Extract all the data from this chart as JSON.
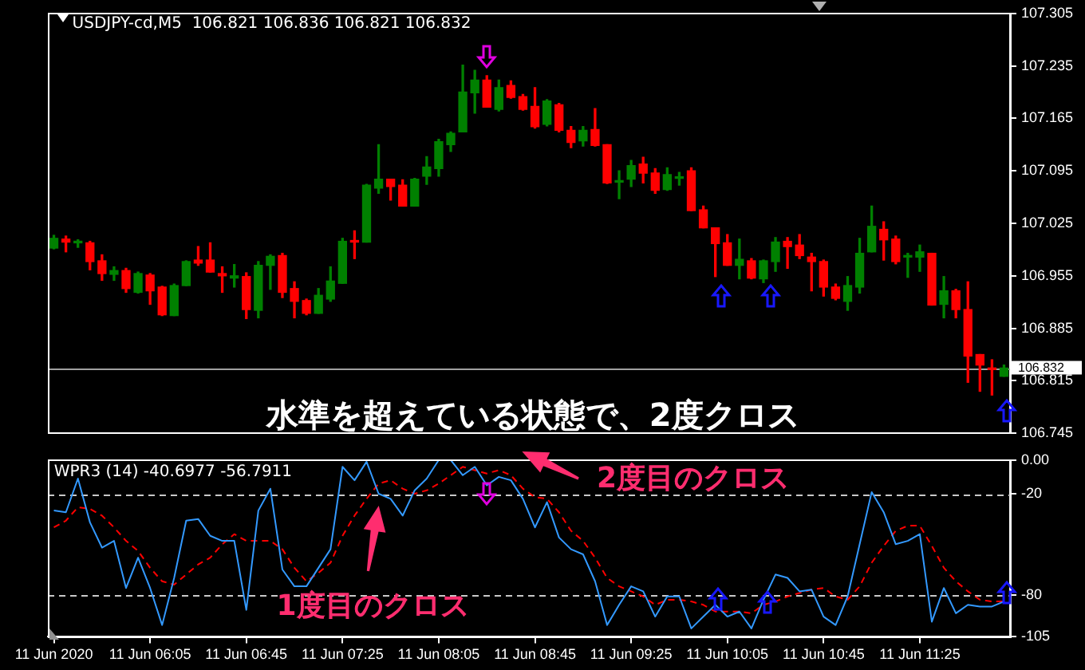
{
  "chart_data": [
    {
      "type": "candlestick",
      "title": "USDJPY-cd,M5  106.821 106.836 106.821 106.832",
      "ohlc": [
        [
          106.992,
          107.009,
          106.991,
          107.005
        ],
        [
          107.004,
          107.008,
          106.987,
          107.0
        ],
        [
          106.999,
          107.003,
          106.993,
          107.001
        ],
        [
          106.999,
          107.001,
          106.963,
          106.974
        ],
        [
          106.975,
          106.983,
          106.949,
          106.958
        ],
        [
          106.957,
          106.967,
          106.949,
          106.962
        ],
        [
          106.962,
          106.965,
          106.933,
          106.938
        ],
        [
          106.933,
          106.96,
          106.932,
          106.958
        ],
        [
          106.956,
          106.958,
          106.917,
          106.935
        ],
        [
          106.94,
          106.941,
          106.902,
          106.903
        ],
        [
          106.902,
          106.944,
          106.902,
          106.942
        ],
        [
          106.942,
          106.975,
          106.942,
          106.974
        ],
        [
          106.976,
          106.994,
          106.969,
          106.972
        ],
        [
          106.976,
          106.999,
          106.96,
          106.96
        ],
        [
          106.958,
          106.967,
          106.933,
          106.955
        ],
        [
          106.952,
          106.97,
          106.94,
          106.955
        ],
        [
          106.954,
          106.959,
          106.898,
          106.91
        ],
        [
          106.909,
          106.974,
          106.899,
          106.969
        ],
        [
          106.969,
          106.983,
          106.937,
          106.981
        ],
        [
          106.982,
          106.985,
          106.926,
          106.933
        ],
        [
          106.938,
          106.947,
          106.899,
          106.921
        ],
        [
          106.922,
          106.924,
          106.903,
          106.905
        ],
        [
          106.905,
          106.938,
          106.905,
          106.929
        ],
        [
          106.924,
          106.967,
          106.921,
          106.948
        ],
        [
          106.945,
          107.005,
          106.945,
          107.001
        ],
        [
          107.001,
          107.015,
          106.978,
          107.0
        ],
        [
          107.0,
          107.077,
          107.0,
          107.076
        ],
        [
          107.072,
          107.13,
          107.065,
          107.084
        ],
        [
          107.084,
          107.084,
          107.056,
          107.074
        ],
        [
          107.076,
          107.083,
          107.048,
          107.048
        ],
        [
          107.048,
          107.085,
          107.048,
          107.084
        ],
        [
          107.088,
          107.114,
          107.077,
          107.1
        ],
        [
          107.098,
          107.137,
          107.088,
          107.134
        ],
        [
          107.13,
          107.147,
          107.121,
          107.145
        ],
        [
          107.147,
          107.236,
          107.147,
          107.2
        ],
        [
          107.199,
          107.229,
          107.172,
          107.216
        ],
        [
          107.216,
          107.222,
          107.18,
          107.18
        ],
        [
          107.177,
          107.216,
          107.175,
          107.206
        ],
        [
          107.209,
          107.215,
          107.192,
          107.193
        ],
        [
          107.194,
          107.197,
          107.176,
          107.177
        ],
        [
          107.181,
          107.206,
          107.152,
          107.154
        ],
        [
          107.157,
          107.19,
          107.155,
          107.188
        ],
        [
          107.183,
          107.185,
          107.147,
          107.149
        ],
        [
          107.149,
          107.154,
          107.126,
          107.133
        ],
        [
          107.135,
          107.154,
          107.128,
          107.149
        ],
        [
          107.15,
          107.178,
          107.128,
          107.129
        ],
        [
          107.13,
          107.13,
          107.078,
          107.079
        ],
        [
          107.08,
          107.095,
          107.058,
          107.082
        ],
        [
          107.084,
          107.109,
          107.074,
          107.102
        ],
        [
          107.104,
          107.113,
          107.079,
          107.092
        ],
        [
          107.092,
          107.098,
          107.065,
          107.069
        ],
        [
          107.07,
          107.099,
          107.069,
          107.09
        ],
        [
          107.085,
          107.093,
          107.076,
          107.087
        ],
        [
          107.095,
          107.099,
          107.042,
          107.042
        ],
        [
          107.043,
          107.048,
          107.019,
          107.019
        ],
        [
          107.019,
          107.019,
          106.954,
          106.998
        ],
        [
          106.999,
          107.01,
          106.969,
          106.969
        ],
        [
          106.969,
          107.004,
          106.951,
          106.977
        ],
        [
          106.975,
          106.978,
          106.951,
          106.952
        ],
        [
          106.951,
          106.976,
          106.946,
          106.975
        ],
        [
          106.974,
          107.006,
          106.961,
          107.0
        ],
        [
          107.001,
          107.006,
          106.965,
          106.994
        ],
        [
          106.996,
          107.01,
          106.978,
          106.982
        ],
        [
          106.98,
          106.985,
          106.935,
          106.974
        ],
        [
          106.974,
          106.976,
          106.928,
          106.94
        ],
        [
          106.94,
          106.944,
          106.923,
          106.925
        ],
        [
          106.921,
          106.954,
          106.909,
          106.942
        ],
        [
          106.94,
          107.005,
          106.932,
          106.985
        ],
        [
          106.987,
          107.048,
          106.987,
          107.021
        ],
        [
          107.017,
          107.027,
          106.976,
          107.003
        ],
        [
          107.004,
          107.008,
          106.971,
          106.974
        ],
        [
          106.98,
          106.985,
          106.953,
          106.981
        ],
        [
          106.98,
          106.996,
          106.961,
          106.987
        ],
        [
          106.985,
          106.985,
          106.916,
          106.916
        ],
        [
          106.917,
          106.954,
          106.899,
          106.935
        ],
        [
          106.935,
          106.937,
          106.899,
          106.91
        ],
        [
          106.91,
          106.947,
          106.813,
          106.848
        ],
        [
          106.85,
          106.85,
          106.801,
          106.836
        ],
        [
          106.831,
          106.843,
          106.796,
          106.83
        ],
        [
          106.821,
          106.836,
          106.821,
          106.832
        ]
      ],
      "colors": [
        "#008000",
        "#ff0000",
        "#008000",
        "#ff0000",
        "#ff0000",
        "#008000",
        "#ff0000",
        "#008000",
        "#ff0000",
        "#ff0000",
        "#008000",
        "#008000",
        "#ff0000",
        "#ff0000",
        "#ff0000",
        "#008000",
        "#ff0000",
        "#008000",
        "#008000",
        "#ff0000",
        "#ff0000",
        "#ff0000",
        "#008000",
        "#008000",
        "#008000",
        "#ff0000",
        "#008000",
        "#008000",
        "#ff0000",
        "#ff0000",
        "#008000",
        "#008000",
        "#008000",
        "#008000",
        "#008000",
        "#008000",
        "#ff0000",
        "#008000",
        "#ff0000",
        "#ff0000",
        "#ff0000",
        "#008000",
        "#ff0000",
        "#ff0000",
        "#008000",
        "#ff0000",
        "#ff0000",
        "#008000",
        "#008000",
        "#ff0000",
        "#ff0000",
        "#008000",
        "#008000",
        "#ff0000",
        "#ff0000",
        "#ff0000",
        "#ff0000",
        "#008000",
        "#ff0000",
        "#008000",
        "#008000",
        "#ff0000",
        "#ff0000",
        "#ff0000",
        "#ff0000",
        "#ff0000",
        "#008000",
        "#008000",
        "#008000",
        "#ff0000",
        "#ff0000",
        "#008000",
        "#008000",
        "#ff0000",
        "#008000",
        "#ff0000",
        "#ff0000",
        "#ff0000",
        "#ff0000",
        "#008000"
      ],
      "ylim": [
        106.745,
        107.305
      ],
      "yticks": [
        106.745,
        106.815,
        106.885,
        106.955,
        107.025,
        107.095,
        107.165,
        107.235,
        107.305
      ],
      "ref_lines": [
        {
          "axis": "y",
          "value": 106.832,
          "label": "106.832",
          "color": "#a0a0a0"
        }
      ],
      "annotations": [
        "水準を超えている状態で、2度クロス"
      ],
      "tick_labels": "y"
    },
    {
      "type": "line",
      "title": "WPR3 (14) -40.6977 -56.7911",
      "categories": [
        "11 Jun 2020",
        null,
        null,
        null,
        null,
        null,
        null,
        null,
        "11 Jun 06:05",
        null,
        null,
        null,
        null,
        null,
        null,
        null,
        "11 Jun 06:45",
        null,
        null,
        null,
        null,
        null,
        null,
        null,
        "11 Jun 07:25",
        null,
        null,
        null,
        null,
        null,
        null,
        null,
        "11 Jun 08:05",
        null,
        null,
        null,
        null,
        null,
        null,
        null,
        "11 Jun 08:45",
        null,
        null,
        null,
        null,
        null,
        null,
        null,
        "11 Jun 09:25",
        null,
        null,
        null,
        null,
        null,
        null,
        null,
        "11 Jun 10:05",
        null,
        null,
        null,
        null,
        null,
        null,
        null,
        "11 Jun 10:45",
        null,
        null,
        null,
        null,
        null,
        null,
        null,
        "11 Jun 11:25",
        null,
        null,
        null,
        null,
        null,
        null,
        null
      ],
      "series": [
        {
          "color": "#3399ff",
          "line_style": "solid",
          "values": [
            -30,
            -31,
            -11,
            -37,
            -52,
            -48,
            -76,
            -58,
            -76,
            -98,
            -70,
            -36,
            -35,
            -45,
            -48,
            -48,
            -89,
            -30,
            -17,
            -65,
            -75,
            -75,
            -64,
            -53,
            -4,
            -12,
            -1,
            -20,
            -23,
            -33,
            -18,
            -11,
            0,
            0,
            -9,
            -4,
            -15,
            -10,
            -12,
            -23,
            -40,
            -25,
            -46,
            -53,
            -56,
            -72,
            -98,
            -86,
            -75,
            -78,
            -93,
            -81,
            -81,
            -100,
            -93,
            -86,
            -93,
            -90,
            -100,
            -83,
            -68,
            -70,
            -78,
            -77,
            -93,
            -98,
            -81,
            -50,
            -19,
            -31,
            -50,
            -48,
            -44,
            -96,
            -76,
            -91,
            -86,
            -87,
            -87,
            -84
          ]
        },
        {
          "color": "#ff0000",
          "line_style": "dashed",
          "values": [
            -40,
            -36,
            -28,
            -29,
            -33,
            -40,
            -48,
            -54,
            -64,
            -72,
            -74,
            -68,
            -62,
            -58,
            -50,
            -44,
            -48,
            -48,
            -48,
            -53,
            -64,
            -72,
            -67,
            -61,
            -45,
            -33,
            -23,
            -14,
            -12,
            -17,
            -20,
            -18,
            -14,
            -9,
            -4,
            -6,
            -8,
            -6,
            -9,
            -17,
            -22,
            -23,
            -31,
            -42,
            -48,
            -58,
            -70,
            -75,
            -78,
            -81,
            -86,
            -83,
            -83,
            -84,
            -86,
            -90,
            -90,
            -90,
            -91,
            -86,
            -84,
            -81,
            -79,
            -77,
            -76,
            -81,
            -83,
            -75,
            -61,
            -51,
            -42,
            -39,
            -39,
            -51,
            -64,
            -72,
            -78,
            -83,
            -84,
            -84
          ]
        }
      ],
      "marker": "none",
      "ylim": [
        -105,
        0
      ],
      "yticks": [
        {
          "value": 0,
          "label": "0.00"
        },
        -20,
        -80,
        -105
      ],
      "ref_lines": [
        {
          "axis": "y",
          "value": -20,
          "color": "#c8c8c8",
          "line_style": "dashed"
        },
        {
          "axis": "y",
          "value": -80,
          "color": "#c8c8c8",
          "line_style": "dashed"
        }
      ],
      "annotations": [
        "1度目のクロス",
        "2度目のクロス"
      ]
    }
  ]
}
